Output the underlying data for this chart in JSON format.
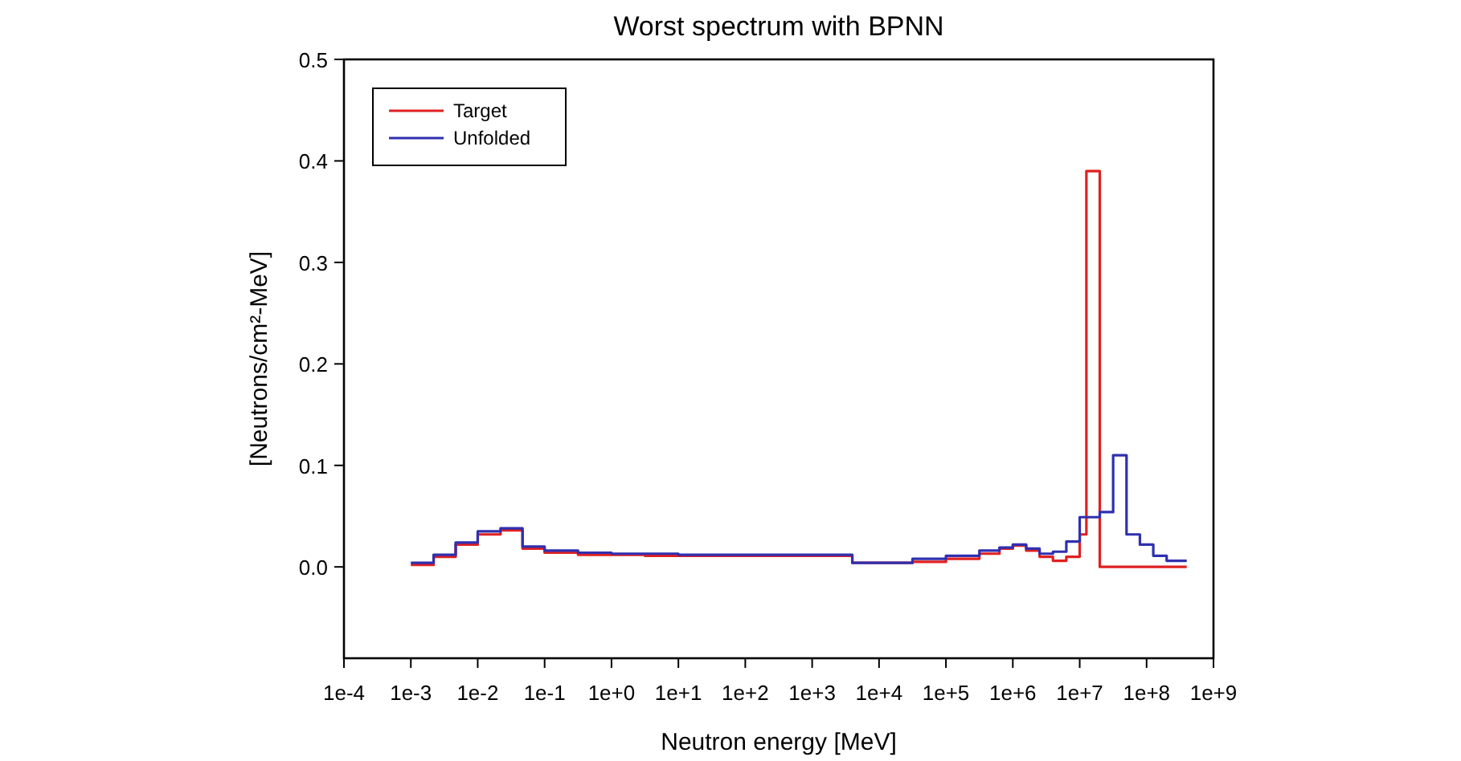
{
  "chart_data": {
    "type": "step",
    "title": "Worst spectrum with BPNN",
    "xlabel": "Neutron energy [MeV]",
    "ylabel": "[Neutrons/cm²-MeV]",
    "log": "x",
    "grid": false,
    "legend": "top left",
    "xlim": [
      0.0001,
      1000000000
    ],
    "ylim": [
      -0.09,
      0.5
    ],
    "xticks": [
      {
        "value": 0.0001,
        "label": "1e-4"
      },
      {
        "value": 0.001,
        "label": "1e-3"
      },
      {
        "value": 0.01,
        "label": "1e-2"
      },
      {
        "value": 0.1,
        "label": "1e-1"
      },
      {
        "value": 1,
        "label": "1e+0"
      },
      {
        "value": 10,
        "label": "1e+1"
      },
      {
        "value": 100,
        "label": "1e+2"
      },
      {
        "value": 1000,
        "label": "1e+3"
      },
      {
        "value": 10000,
        "label": "1e+4"
      },
      {
        "value": 100000,
        "label": "1e+5"
      },
      {
        "value": 1000000,
        "label": "1e+6"
      },
      {
        "value": 10000000,
        "label": "1e+7"
      },
      {
        "value": 100000000,
        "label": "1e+8"
      },
      {
        "value": 1000000000,
        "label": "1e+9"
      }
    ],
    "yticks": [
      {
        "value": 0,
        "label": "0.0"
      },
      0.1,
      0.2,
      0.3,
      0.4,
      0.5
    ],
    "series": [
      {
        "name": "Target",
        "color": "#e02020",
        "x": [
          0.001,
          0.00219,
          0.00468,
          0.01,
          0.0219,
          0.0468,
          0.1,
          0.316,
          3.16,
          3981,
          31623,
          100000,
          316228,
          630957,
          1000000,
          1584893,
          2511886,
          3981072,
          6309573,
          10000000,
          12589254,
          19952623,
          398107171
        ],
        "values": [
          0.002,
          0.01,
          0.022,
          0.032,
          0.036,
          0.018,
          0.014,
          0.012,
          0.011,
          0.004,
          0.005,
          0.008,
          0.013,
          0.018,
          0.021,
          0.016,
          0.01,
          0.006,
          0.01,
          0.032,
          0.39,
          0,
          0
        ]
      },
      {
        "name": "Unfolded",
        "color": "#3030b0",
        "x": [
          0.001,
          0.00219,
          0.00468,
          0.01,
          0.0219,
          0.0468,
          0.1,
          0.316,
          1,
          10,
          3981,
          31623,
          100000,
          316228,
          630957,
          1000000,
          1584893,
          2511886,
          3981072,
          6309573,
          10000000,
          19952623,
          31622777,
          50118723,
          79432823,
          125892541,
          199526231,
          398107171
        ],
        "values": [
          0.004,
          0.012,
          0.024,
          0.035,
          0.038,
          0.02,
          0.016,
          0.014,
          0.013,
          0.012,
          0.004,
          0.008,
          0.011,
          0.016,
          0.019,
          0.022,
          0.018,
          0.013,
          0.015,
          0.025,
          0.049,
          0.054,
          0.11,
          0.032,
          0.022,
          0.011,
          0.006,
          0.006
        ]
      }
    ]
  }
}
